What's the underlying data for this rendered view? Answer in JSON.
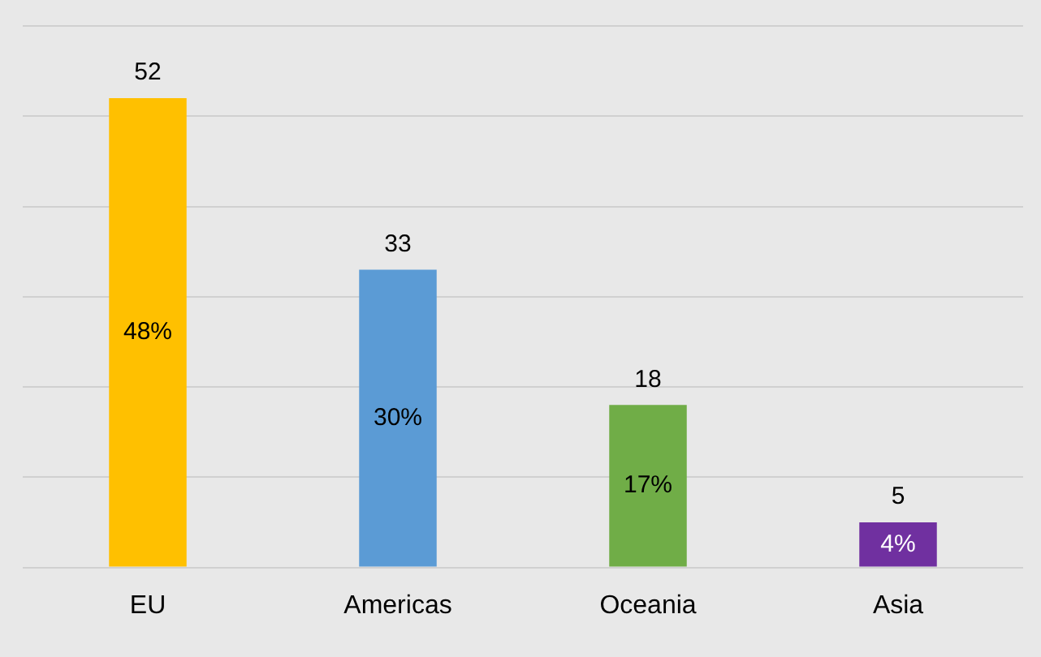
{
  "chart_data": {
    "type": "bar",
    "categories": [
      "EU",
      "Americas",
      "Oceania",
      "Asia"
    ],
    "values": [
      52,
      33,
      18,
      5
    ],
    "colors": [
      "#ffc000",
      "#5b9bd5",
      "#70ad47",
      "#7030a0"
    ],
    "tick_labels": "x",
    "grid": "y",
    "data_labels": true,
    "annotations": [
      "48%",
      "30%",
      "17%",
      "4%"
    ]
  }
}
